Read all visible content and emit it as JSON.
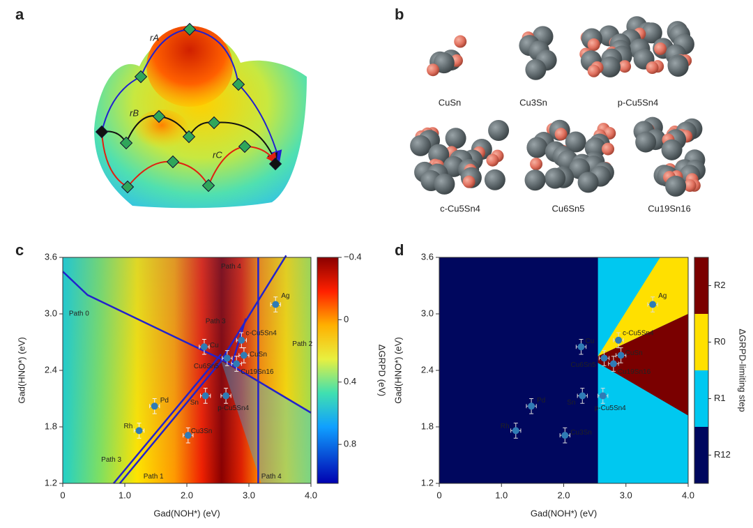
{
  "panel_labels": [
    "a",
    "b",
    "c",
    "d"
  ],
  "panel_a": {
    "path_labels": [
      "rA",
      "rB",
      "rC"
    ]
  },
  "panel_b": {
    "structures": [
      "CuSn",
      "Cu3Sn",
      "p-Cu5Sn4",
      "c-Cu5Sn4",
      "Cu6Sn5",
      "Cu19Sn16"
    ]
  },
  "chart_data": [
    {
      "type": "scatter",
      "xlabel": "Gad(NOH*) (eV)",
      "ylabel": "Gad(HNO*) (eV)",
      "x": [
        3.43,
        2.28,
        2.88,
        2.92,
        2.8,
        2.65,
        2.3,
        2.63,
        1.48,
        1.23,
        2.02
      ],
      "y": [
        3.1,
        2.65,
        2.72,
        2.56,
        2.47,
        2.53,
        2.13,
        2.13,
        2.02,
        1.76,
        1.71
      ],
      "labels": [
        "Ag",
        "Cu",
        "c-Cu5Sn4",
        "CuSn",
        "Cu19Sn16",
        "Cu6Sn5",
        "Sn",
        "p-Cu5Sn4",
        "Pd",
        "Rh",
        "Cu3Sn"
      ],
      "error": 0.08,
      "color": "#2f7bb5",
      "xlim": [
        0,
        4
      ],
      "ylim": [
        1.2,
        3.6
      ],
      "xticks": [
        0,
        {
          "value": 1,
          "label": "1.0"
        },
        {
          "value": 2,
          "label": "2.0"
        },
        {
          "value": 3,
          "label": "3.0"
        },
        {
          "value": 4,
          "label": "4.0"
        }
      ],
      "yticks": [
        1.2,
        1.8,
        2.4,
        {
          "value": 3,
          "label": "3.0"
        },
        3.6
      ],
      "annotations": [
        "Path 0",
        "Path 1",
        "Path 2",
        "Path 3",
        "Path 3",
        "Path 4",
        "Path 4"
      ],
      "colorbar": {
        "label": "ΔGRPD (eV)",
        "lim": [
          -0.4,
          1.05
        ],
        "ticks": [
          {
            "value": -0.4,
            "label": "−0.4"
          },
          0,
          0.4,
          0.8
        ]
      }
    },
    {
      "type": "scatter",
      "xlabel": "Gad(NOH*) (eV)",
      "ylabel": "Gad(HNO*) (eV)",
      "x": [
        3.43,
        2.28,
        2.88,
        2.92,
        2.8,
        2.65,
        2.3,
        2.63,
        1.48,
        1.23,
        2.02
      ],
      "y": [
        3.1,
        2.65,
        2.72,
        2.56,
        2.47,
        2.53,
        2.13,
        2.13,
        2.02,
        1.76,
        1.71
      ],
      "labels": [
        "Ag",
        "Cu",
        "c-Cu5Sn4",
        "CuSn",
        "Cu19Sn16",
        "Cu6Sn5",
        "Sn",
        "p-Cu5Sn4",
        "Pd",
        "Rh",
        "Cu3Sn"
      ],
      "error": 0.08,
      "color": "#2f7bb5",
      "xlim": [
        0,
        4
      ],
      "ylim": [
        1.2,
        3.6
      ],
      "xticks": [
        0,
        {
          "value": 1,
          "label": "1.0"
        },
        {
          "value": 2,
          "label": "2.0"
        },
        {
          "value": 3,
          "label": "3.0"
        },
        {
          "value": 4,
          "label": "4.0"
        }
      ],
      "yticks": [
        1.2,
        1.8,
        2.4,
        {
          "value": 3,
          "label": "3.0"
        },
        3.6
      ],
      "colorbar": {
        "label": "ΔGRPD-limiting step",
        "categories": [
          "R12",
          "R1",
          "R0",
          "R2"
        ],
        "colors": [
          "#00075e",
          "#00c8f0",
          "#ffe000",
          "#7a0000"
        ]
      }
    }
  ]
}
